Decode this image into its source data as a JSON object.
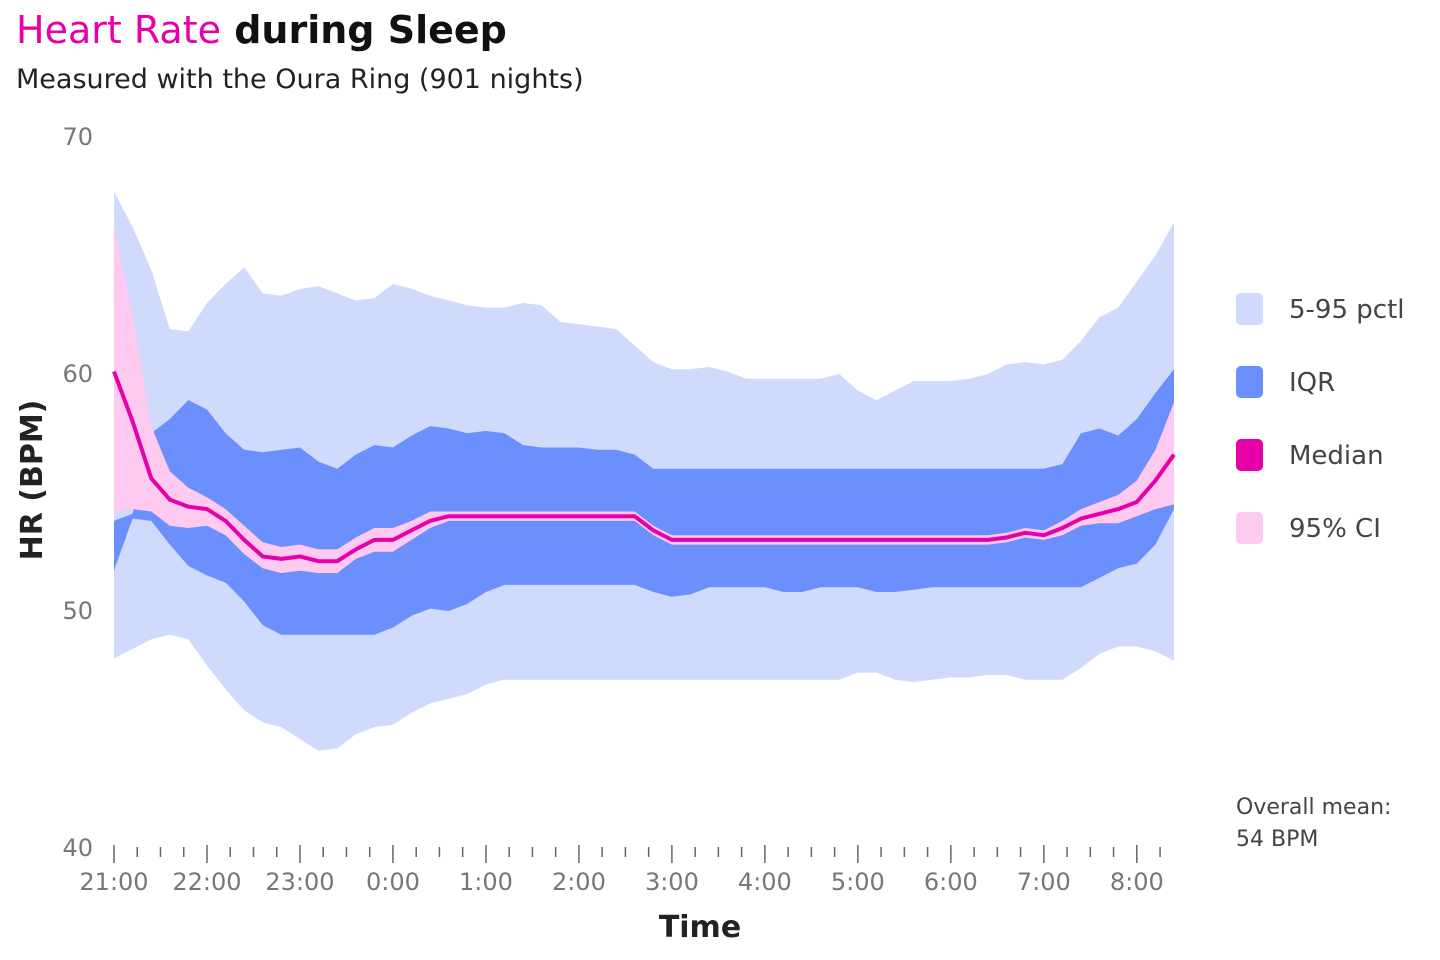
{
  "title_accent": "Heart Rate",
  "title_rest": "during Sleep",
  "subtitle": "Measured with the Oura Ring (901 nights)",
  "note": {
    "line1": "Overall mean:",
    "line2": "54 BPM"
  },
  "colors": {
    "p5_95": "#d0dafc",
    "iqr": "#6b8ffd",
    "median": "#e600a9",
    "ci": "#ffcaf0"
  },
  "chart_data": {
    "type": "area",
    "xlabel": "Time",
    "ylabel": "HR (BPM)",
    "ylim": [
      40,
      70
    ],
    "yticks": [
      40,
      50,
      60,
      70
    ],
    "x_range_hours": [
      21,
      32.4
    ],
    "xticks": [
      {
        "value": 21,
        "label": "21:00"
      },
      {
        "value": 22,
        "label": "22:00"
      },
      {
        "value": 23,
        "label": "23:00"
      },
      {
        "value": 24,
        "label": "0:00"
      },
      {
        "value": 25,
        "label": "1:00"
      },
      {
        "value": 26,
        "label": "2:00"
      },
      {
        "value": 27,
        "label": "3:00"
      },
      {
        "value": 28,
        "label": "4:00"
      },
      {
        "value": 29,
        "label": "5:00"
      },
      {
        "value": 30,
        "label": "6:00"
      },
      {
        "value": 31,
        "label": "7:00"
      },
      {
        "value": 32,
        "label": "8:00"
      }
    ],
    "legend": [
      {
        "key": "p5_95",
        "label": "5-95 pctl"
      },
      {
        "key": "iqr",
        "label": "IQR"
      },
      {
        "key": "median",
        "label": "Median"
      },
      {
        "key": "ci",
        "label": "95% CI"
      }
    ],
    "legend_position": "right",
    "x": [
      21.0,
      21.2,
      21.4,
      21.6,
      21.8,
      22.0,
      22.2,
      22.4,
      22.6,
      22.8,
      23.0,
      23.2,
      23.4,
      23.6,
      23.8,
      24.0,
      24.2,
      24.4,
      24.6,
      24.8,
      25.0,
      25.2,
      25.4,
      25.6,
      25.8,
      26.0,
      26.2,
      26.4,
      26.6,
      26.8,
      27.0,
      27.2,
      27.4,
      27.6,
      27.8,
      28.0,
      28.2,
      28.4,
      28.6,
      28.8,
      29.0,
      29.2,
      29.4,
      29.6,
      29.8,
      30.0,
      30.2,
      30.4,
      30.6,
      30.8,
      31.0,
      31.2,
      31.4,
      31.6,
      31.8,
      32.0,
      32.2,
      32.4
    ],
    "series": [
      {
        "key": "p95",
        "values": [
          67.7,
          66.2,
          64.4,
          61.9,
          61.8,
          63.0,
          63.8,
          64.5,
          63.4,
          63.3,
          63.6,
          63.7,
          63.4,
          63.1,
          63.2,
          63.8,
          63.6,
          63.3,
          63.1,
          62.9,
          62.8,
          62.8,
          63.0,
          62.9,
          62.2,
          62.1,
          62.0,
          61.9,
          61.2,
          60.5,
          60.2,
          60.2,
          60.3,
          60.1,
          59.8,
          59.8,
          59.8,
          59.8,
          59.8,
          60.0,
          59.3,
          58.9,
          59.3,
          59.7,
          59.7,
          59.7,
          59.8,
          60.0,
          60.4,
          60.5,
          60.4,
          60.6,
          61.4,
          62.4,
          62.8,
          63.9,
          65.0,
          66.4
        ]
      },
      {
        "key": "p5",
        "values": [
          48.0,
          48.4,
          48.8,
          49.0,
          48.8,
          47.7,
          46.7,
          45.8,
          45.3,
          45.1,
          44.6,
          44.1,
          44.2,
          44.8,
          45.1,
          45.2,
          45.7,
          46.1,
          46.3,
          46.5,
          46.9,
          47.1,
          47.1,
          47.1,
          47.1,
          47.1,
          47.1,
          47.1,
          47.1,
          47.1,
          47.1,
          47.1,
          47.1,
          47.1,
          47.1,
          47.1,
          47.1,
          47.1,
          47.1,
          47.1,
          47.4,
          47.4,
          47.1,
          47.0,
          47.1,
          47.2,
          47.2,
          47.3,
          47.3,
          47.1,
          47.1,
          47.1,
          47.6,
          48.2,
          48.5,
          48.5,
          48.3,
          47.9
        ]
      },
      {
        "key": "q75",
        "values": [
          53.8,
          54.1,
          57.5,
          58.1,
          58.9,
          58.5,
          57.5,
          56.8,
          56.7,
          56.8,
          56.9,
          56.3,
          56.0,
          56.6,
          57.0,
          56.9,
          57.4,
          57.8,
          57.7,
          57.5,
          57.6,
          57.5,
          57.0,
          56.9,
          56.9,
          56.9,
          56.8,
          56.8,
          56.6,
          56.0,
          56.0,
          56.0,
          56.0,
          56.0,
          56.0,
          56.0,
          56.0,
          56.0,
          56.0,
          56.0,
          56.0,
          56.0,
          56.0,
          56.0,
          56.0,
          56.0,
          56.0,
          56.0,
          56.0,
          56.0,
          56.0,
          56.2,
          57.5,
          57.7,
          57.4,
          58.1,
          59.2,
          60.2
        ]
      },
      {
        "key": "q25",
        "values": [
          51.7,
          53.9,
          53.8,
          52.8,
          51.9,
          51.5,
          51.2,
          50.4,
          49.4,
          49.0,
          49.0,
          49.0,
          49.0,
          49.0,
          49.0,
          49.3,
          49.8,
          50.1,
          50.0,
          50.3,
          50.8,
          51.1,
          51.1,
          51.1,
          51.1,
          51.1,
          51.1,
          51.1,
          51.1,
          50.8,
          50.6,
          50.7,
          51.0,
          51.0,
          51.0,
          51.0,
          50.8,
          50.8,
          51.0,
          51.0,
          51.0,
          50.8,
          50.8,
          50.9,
          51.0,
          51.0,
          51.0,
          51.0,
          51.0,
          51.0,
          51.0,
          51.0,
          51.0,
          51.4,
          51.8,
          52.0,
          52.8,
          54.3
        ]
      },
      {
        "key": "median",
        "values": [
          60.1,
          58.0,
          55.6,
          54.7,
          54.4,
          54.3,
          53.8,
          53.0,
          52.3,
          52.2,
          52.3,
          52.1,
          52.1,
          52.6,
          53.0,
          53.0,
          53.4,
          53.8,
          54.0,
          54.0,
          54.0,
          54.0,
          54.0,
          54.0,
          54.0,
          54.0,
          54.0,
          54.0,
          54.0,
          53.4,
          53.0,
          53.0,
          53.0,
          53.0,
          53.0,
          53.0,
          53.0,
          53.0,
          53.0,
          53.0,
          53.0,
          53.0,
          53.0,
          53.0,
          53.0,
          53.0,
          53.0,
          53.0,
          53.1,
          53.3,
          53.2,
          53.5,
          53.9,
          54.1,
          54.3,
          54.6,
          55.5,
          56.6
        ]
      },
      {
        "key": "ci_upper",
        "values": [
          66.2,
          62.5,
          57.8,
          55.9,
          55.2,
          54.8,
          54.3,
          53.6,
          52.9,
          52.7,
          52.8,
          52.6,
          52.6,
          53.1,
          53.5,
          53.5,
          53.8,
          54.2,
          54.2,
          54.2,
          54.2,
          54.2,
          54.2,
          54.2,
          54.2,
          54.2,
          54.2,
          54.2,
          54.2,
          53.6,
          53.2,
          53.2,
          53.2,
          53.2,
          53.2,
          53.2,
          53.2,
          53.2,
          53.2,
          53.2,
          53.2,
          53.2,
          53.2,
          53.2,
          53.2,
          53.2,
          53.2,
          53.2,
          53.3,
          53.5,
          53.4,
          53.8,
          54.3,
          54.6,
          54.9,
          55.5,
          56.8,
          58.8
        ]
      },
      {
        "key": "ci_lower",
        "values": [
          54.2,
          54.3,
          54.2,
          53.6,
          53.5,
          53.6,
          53.2,
          52.4,
          51.8,
          51.6,
          51.7,
          51.6,
          51.6,
          52.2,
          52.5,
          52.5,
          53.0,
          53.5,
          53.8,
          53.8,
          53.8,
          53.8,
          53.8,
          53.8,
          53.8,
          53.8,
          53.8,
          53.8,
          53.8,
          53.2,
          52.8,
          52.8,
          52.8,
          52.8,
          52.8,
          52.8,
          52.8,
          52.8,
          52.8,
          52.8,
          52.8,
          52.8,
          52.8,
          52.8,
          52.8,
          52.8,
          52.8,
          52.8,
          52.9,
          53.1,
          53.0,
          53.2,
          53.6,
          53.7,
          53.7,
          54.0,
          54.3,
          54.5
        ]
      }
    ]
  }
}
